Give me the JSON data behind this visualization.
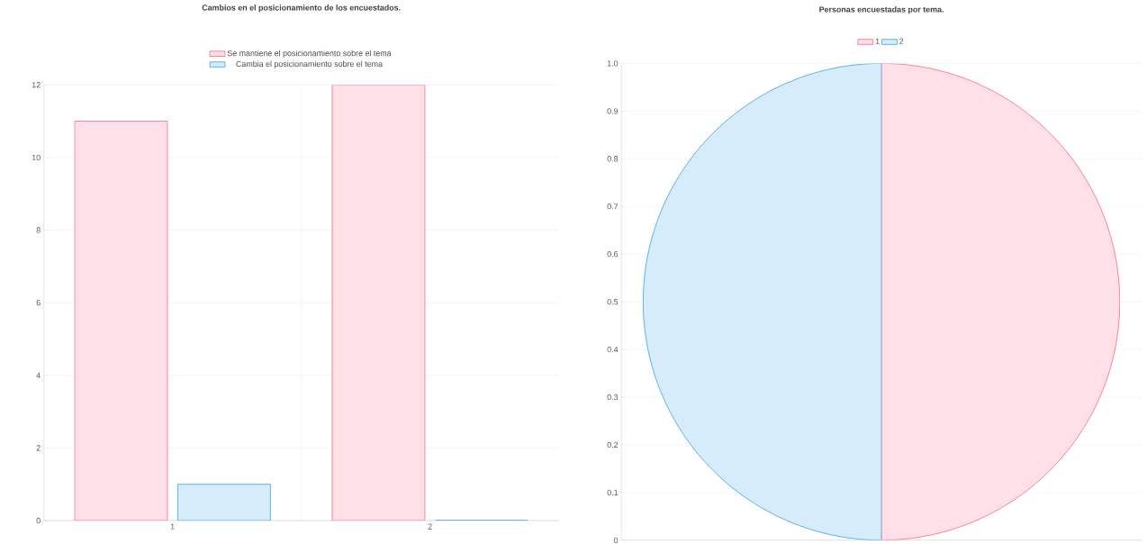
{
  "chart_data": [
    {
      "type": "bar",
      "title": "Cambios en el posicionamiento de los encuestados.",
      "categories": [
        "1",
        "2"
      ],
      "series": [
        {
          "name": "Se mantiene el posicionamiento sobre el tema",
          "color": "#ffe0e6",
          "values": [
            11,
            12
          ]
        },
        {
          "name": "Cambia el posicionamiento sobre el tema",
          "color": "#d7ecfb",
          "values": [
            1,
            0
          ]
        }
      ],
      "ylim": [
        0,
        12
      ],
      "yticks": [
        0,
        2,
        4,
        6,
        8,
        10,
        12
      ],
      "grid": true,
      "legend": "top"
    },
    {
      "type": "pie",
      "title": "Personas encuestadas por tema.",
      "categories": [
        "1",
        "2"
      ],
      "values": [
        50,
        50
      ],
      "colors": [
        "#ffe0e6",
        "#d7ecfb"
      ],
      "annotations": [
        "0",
        "0.1",
        "0.2",
        "0.3",
        "0.4",
        "0.5",
        "0.6",
        "0.7",
        "0.8",
        "0.9",
        "1.0"
      ],
      "grid": "y",
      "legend": "top"
    }
  ]
}
